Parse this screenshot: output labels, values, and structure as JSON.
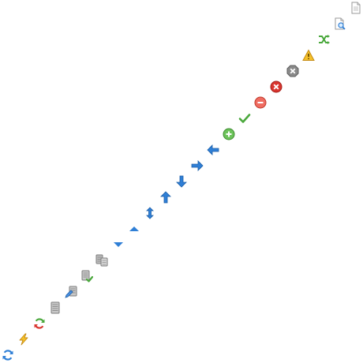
{
  "icons": [
    {
      "name": "page-icon"
    },
    {
      "name": "page-search-icon"
    },
    {
      "name": "shuffle-icon"
    },
    {
      "name": "warning-icon"
    },
    {
      "name": "gray-close-icon"
    },
    {
      "name": "red-close-icon"
    },
    {
      "name": "minus-circle-icon"
    },
    {
      "name": "checkmark-icon"
    },
    {
      "name": "plus-circle-icon"
    },
    {
      "name": "arrow-left-icon"
    },
    {
      "name": "arrow-right-icon"
    },
    {
      "name": "arrow-down-icon"
    },
    {
      "name": "arrow-up-icon"
    },
    {
      "name": "arrow-up-down-icon"
    },
    {
      "name": "triangle-up-icon"
    },
    {
      "name": "triangle-down-icon"
    },
    {
      "name": "database-copy-icon"
    },
    {
      "name": "database-check-icon"
    },
    {
      "name": "database-edit-icon"
    },
    {
      "name": "database-icon"
    },
    {
      "name": "refresh-colored-icon"
    },
    {
      "name": "lightning-icon"
    },
    {
      "name": "refresh-icon"
    }
  ],
  "colors": {
    "blue": "#2f7fd6",
    "green": "#4aa83c",
    "red": "#d9352f",
    "gray": "#8a8a8a",
    "yellow": "#f5c12a"
  }
}
